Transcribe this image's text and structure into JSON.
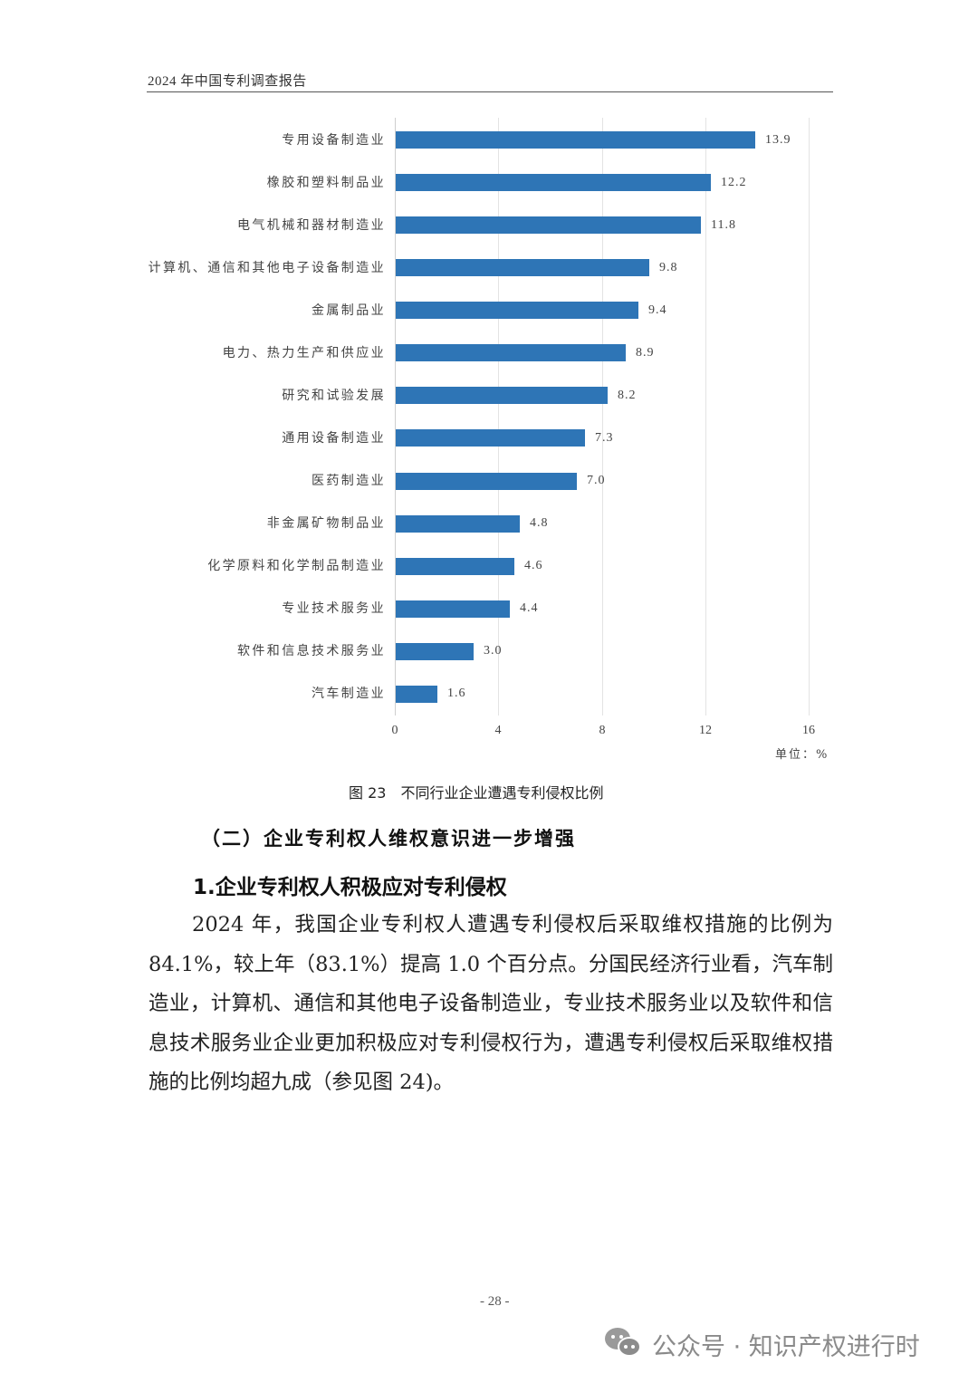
{
  "header": {
    "title": "2024 年中国专利调查报告"
  },
  "chart_data": {
    "type": "bar",
    "orientation": "horizontal",
    "title": "不同行业企业遭遇专利侵权比例",
    "figure_number": "图 23",
    "xlabel": "",
    "ylabel": "",
    "unit": "单位：%",
    "xlim": [
      0,
      16
    ],
    "x_ticks": [
      "0",
      "4",
      "8",
      "12",
      "16"
    ],
    "grid": "vertical",
    "color": "#2e75b6",
    "categories": [
      "专用设备制造业",
      "橡胶和塑料制品业",
      "电气机械和器材制造业",
      "计算机、通信和其他电子设备制造业",
      "金属制品业",
      "电力、热力生产和供应业",
      "研究和试验发展",
      "通用设备制造业",
      "医药制造业",
      "非金属矿物制品业",
      "化学原料和化学制品制造业",
      "专业技术服务业",
      "软件和信息技术服务业",
      "汽车制造业"
    ],
    "values": [
      13.9,
      12.2,
      11.8,
      9.8,
      9.4,
      8.9,
      8.2,
      7.3,
      7.0,
      4.8,
      4.6,
      4.4,
      3.0,
      1.6
    ],
    "value_labels": [
      "13.9",
      "12.2",
      "11.8",
      "9.8",
      "9.4",
      "8.9",
      "8.2",
      "7.3",
      "7.0",
      "4.8",
      "4.6",
      "4.4",
      "3.0",
      "1.6"
    ]
  },
  "caption": {
    "number": "图 23",
    "text": "不同行业企业遭遇专利侵权比例"
  },
  "section": {
    "heading": "（二）企业专利权人维权意识进一步增强",
    "subheading": "1.企业专利权人积极应对专利侵权",
    "paragraph": "2024 年，我国企业专利权人遭遇专利侵权后采取维权措施的比例为 84.1%，较上年（83.1%）提高 1.0 个百分点。分国民经济行业看，汽车制造业，计算机、通信和其他电子设备制造业，专业技术服务业以及软件和信息技术服务业企业更加积极应对专利侵权行为，遭遇专利侵权后采取维权措施的比例均超九成（参见图 24)。"
  },
  "footer": {
    "page_number": "- 28 -"
  },
  "watermark": {
    "icon": "wechat-icon",
    "text": "公众号 · 知识产权进行时"
  }
}
